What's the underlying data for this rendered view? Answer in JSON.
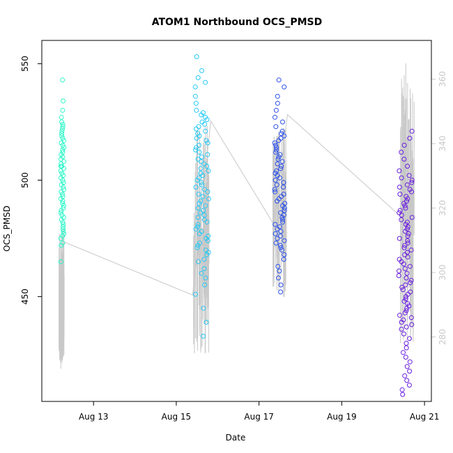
{
  "chart_data": {
    "type": "scatter",
    "title": "ATOM1 Northbound OCS_PMSD",
    "xlabel": "Date",
    "ylabel": "OCS_PMSD",
    "x_ticks": [
      "Aug 13",
      "Aug 15",
      "Aug 17",
      "Aug 19",
      "Aug 21"
    ],
    "xlim": [
      "2023-08-11T18:00",
      "2023-08-21T04:00"
    ],
    "ylim": [
      405,
      560
    ],
    "y_ticks": [
      450,
      500,
      550
    ],
    "y2lim": [
      260,
      372
    ],
    "y2_ticks": [
      280,
      300,
      320,
      340,
      360
    ],
    "colors": {
      "aug12": "#2ef7c9",
      "aug15": "#26c9f5",
      "aug17": "#2b4fe8",
      "aug20": "#6a1ee0",
      "secondary_line": "#c8c8c8"
    },
    "series": [
      {
        "date": "Aug 12",
        "x_range": [
          "2023-08-12T05:00",
          "2023-08-12T07:00"
        ],
        "color_key": "aug12",
        "values": [
          543,
          534,
          530,
          527,
          525,
          524,
          523,
          522,
          521,
          520,
          519,
          518,
          517,
          516,
          515,
          514,
          513,
          512,
          511,
          510,
          509,
          508,
          507,
          506,
          506,
          505,
          504,
          503,
          502,
          501,
          500,
          499,
          498,
          497,
          496,
          495,
          494,
          493,
          492,
          491,
          490,
          489,
          488,
          487,
          486,
          485,
          484,
          483,
          482,
          481,
          480,
          479,
          478,
          477,
          476,
          475,
          473,
          472,
          465
        ]
      },
      {
        "date": "Aug 15",
        "x_range": [
          "2023-08-15T11:00",
          "2023-08-15T19:00"
        ],
        "color_key": "aug15",
        "values": [
          553,
          547,
          544,
          542,
          540,
          536,
          533,
          530,
          529,
          528,
          527,
          526,
          525,
          524,
          523,
          522,
          521,
          520,
          519,
          518,
          517,
          516,
          515,
          514,
          513,
          512,
          511,
          510,
          509,
          508,
          507,
          506,
          505,
          504,
          503,
          502,
          501,
          500,
          499,
          498,
          497,
          496,
          495,
          494,
          493,
          492,
          491,
          490,
          489,
          488,
          487,
          486,
          485,
          484,
          483,
          482,
          481,
          480,
          479,
          478,
          477,
          476,
          475,
          474,
          473,
          472,
          471,
          470,
          469,
          468,
          466,
          465,
          462,
          460,
          458,
          455,
          451,
          445,
          439,
          433
        ]
      },
      {
        "date": "Aug 17",
        "x_range": [
          "2023-08-17T09:00",
          "2023-08-17T15:00"
        ],
        "color_key": "aug17",
        "values": [
          543,
          540,
          536,
          533,
          530,
          527,
          525,
          523,
          521,
          520,
          519,
          518,
          517,
          516,
          515,
          514,
          513,
          512,
          511,
          510,
          509,
          508,
          507,
          506,
          505,
          504,
          503,
          502,
          501,
          500,
          499,
          498,
          497,
          496,
          495,
          494,
          493,
          492,
          491,
          490,
          489,
          488,
          487,
          486,
          485,
          484,
          483,
          482,
          481,
          480,
          479,
          478,
          477,
          476,
          475,
          474,
          473,
          472,
          471,
          470,
          468,
          466,
          463,
          461,
          458,
          455,
          452
        ]
      },
      {
        "date": "Aug 20",
        "x_range": [
          "2023-08-20T09:00",
          "2023-08-20T17:00"
        ],
        "color_key": "aug20",
        "values": [
          521,
          518,
          515,
          512,
          509,
          506,
          504,
          502,
          501,
          500,
          499,
          498,
          497,
          496,
          495,
          494,
          493,
          492,
          491,
          490,
          489,
          488,
          487,
          486,
          485,
          484,
          483,
          482,
          481,
          480,
          479,
          478,
          477,
          476,
          475,
          474,
          473,
          472,
          471,
          470,
          469,
          468,
          467,
          466,
          465,
          464,
          463,
          462,
          461,
          460,
          459,
          458,
          457,
          456,
          455,
          454,
          453,
          452,
          451,
          450,
          449,
          448,
          447,
          446,
          445,
          444,
          443,
          442,
          441,
          440,
          439,
          438,
          437,
          436,
          434,
          432,
          430,
          428,
          426,
          424,
          422,
          420,
          418,
          416,
          414,
          412,
          410,
          408
        ]
      }
    ],
    "secondary_series": {
      "axis": "right",
      "connector": [
        {
          "x": "2023-08-12T04:30",
          "y": 310
        },
        {
          "x": "2023-08-15T09:30",
          "y": 293
        },
        {
          "x": "2023-08-15T20:00",
          "y": 347
        },
        {
          "x": "2023-08-17T08:30",
          "y": 315
        },
        {
          "x": "2023-08-17T16:30",
          "y": 349
        },
        {
          "x": "2023-08-20T11:00",
          "y": 317
        }
      ],
      "clusters": [
        {
          "x_range": [
            "2023-08-12T04:00",
            "2023-08-12T07:00"
          ],
          "low": 270,
          "high": 314
        },
        {
          "x_range": [
            "2023-08-15T10:00",
            "2023-08-15T19:00"
          ],
          "low": 274,
          "high": 347
        },
        {
          "x_range": [
            "2023-08-17T08:00",
            "2023-08-17T16:00"
          ],
          "low": 292,
          "high": 345
        },
        {
          "x_range": [
            "2023-08-20T10:00",
            "2023-08-20T18:00"
          ],
          "low": 278,
          "high": 366
        }
      ]
    },
    "grid": false,
    "legend": "none"
  }
}
